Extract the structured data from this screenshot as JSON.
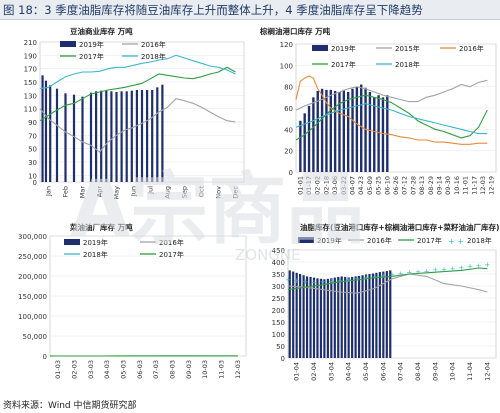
{
  "figure": {
    "title": "图 18：3 季度油脂库存将随豆油库存上升而整体上升，4 季度油脂库存呈下降趋势",
    "source": "资料来源：Wind 中信期货研究部"
  },
  "watermark": {
    "text": "A宗商品",
    "subtext": "ZONGNE"
  },
  "colors": {
    "bar_navy": "#1f2f6d",
    "grey": "#a3a3a3",
    "orange": "#e38b3c",
    "green": "#2f9e3f",
    "cyan": "#3db7c9",
    "navy_line": "#1f2f6d"
  },
  "chart_data": [
    {
      "id": "soy_oil",
      "type": "line",
      "title": "豆油商业库存 万吨",
      "ylim": [
        0,
        210
      ],
      "yticks": [
        0,
        10,
        30,
        50,
        70,
        90,
        110,
        130,
        150,
        170,
        190,
        210
      ],
      "x_tick_labels": [
        "Jan",
        "Feb",
        "Mar",
        "Apr",
        "May",
        "Jun",
        "Jul",
        "Aug",
        "Sep",
        "Oct",
        "Nov",
        "Dec"
      ],
      "legend": [
        {
          "name": "2019年",
          "kind": "bar",
          "color": "#1f2f6d"
        },
        {
          "name": "2016年",
          "kind": "line",
          "color": "#a3a3a3"
        },
        {
          "name": "2017年",
          "kind": "line",
          "color": "#2f9e3f"
        },
        {
          "name": "2018年",
          "kind": "line",
          "color": "#3db7c9"
        }
      ],
      "series": [
        {
          "name": "2019年",
          "kind": "bar",
          "color": "#1f2f6d",
          "x": [
            0.15,
            0.35,
            0.6,
            1.0,
            1.5,
            2.0,
            2.5,
            3.0,
            3.3,
            3.6,
            3.9,
            4.2,
            4.5,
            4.8,
            5.1,
            5.4,
            5.7,
            6.0,
            6.3,
            6.6,
            6.9,
            7.2
          ],
          "y": [
            160,
            152,
            145,
            140,
            133,
            131,
            128,
            134,
            136,
            137,
            137,
            136,
            135,
            136,
            136,
            137,
            138,
            138,
            138,
            138,
            142,
            146
          ]
        },
        {
          "name": "2016年",
          "kind": "line",
          "color": "#a3a3a3",
          "x": [
            0,
            0.5,
            1.0,
            1.5,
            2.0,
            2.5,
            3.0,
            3.5,
            4.0,
            4.5,
            5.0,
            5.5,
            6.0,
            6.5,
            7.0,
            7.5,
            8.0,
            8.5,
            9.0,
            9.5,
            10.0,
            10.5,
            11.0,
            11.5
          ],
          "y": [
            110,
            95,
            85,
            75,
            68,
            60,
            55,
            45,
            60,
            70,
            78,
            82,
            88,
            95,
            105,
            112,
            125,
            122,
            118,
            112,
            105,
            98,
            92,
            90
          ]
        },
        {
          "name": "2017年",
          "kind": "line",
          "color": "#2f9e3f",
          "x": [
            0,
            0.5,
            1.0,
            1.5,
            2.0,
            2.5,
            3.0,
            3.5,
            4.0,
            4.5,
            5.0,
            5.5,
            6.0,
            6.5,
            7.0,
            7.5,
            8.0,
            8.5,
            9.0,
            9.5,
            10.0,
            10.5,
            11.0,
            11.5
          ],
          "y": [
            92,
            100,
            108,
            115,
            118,
            125,
            132,
            135,
            138,
            140,
            142,
            145,
            148,
            155,
            162,
            160,
            158,
            156,
            155,
            158,
            162,
            165,
            172,
            165
          ]
        },
        {
          "name": "2018年",
          "kind": "line",
          "color": "#3db7c9",
          "x": [
            0,
            0.5,
            1.0,
            1.5,
            2.0,
            2.5,
            3.0,
            3.5,
            4.0,
            4.5,
            5.0,
            5.5,
            6.0,
            6.5,
            7.0,
            7.5,
            8.0,
            8.5,
            9.0,
            9.5,
            10.0,
            10.5,
            11.0,
            11.5
          ],
          "y": [
            140,
            142,
            150,
            158,
            162,
            165,
            165,
            166,
            170,
            172,
            172,
            175,
            178,
            180,
            183,
            185,
            190,
            186,
            182,
            178,
            174,
            172,
            168,
            162
          ]
        }
      ]
    },
    {
      "id": "palm_oil",
      "type": "line",
      "title": "棕榈油港口库存 万吨",
      "ylim": [
        0,
        120
      ],
      "yticks": [
        0,
        20,
        40,
        60,
        80,
        100,
        120
      ],
      "x_tick_labels": [
        "01-01",
        "01-17",
        "02-02",
        "02-18",
        "03-06",
        "03-22",
        "04-07",
        "04-23",
        "05-09",
        "05-25",
        "06-10",
        "06-26",
        "07-12",
        "07-28",
        "08-13",
        "08-29",
        "09-14",
        "09-30",
        "10-16",
        "11-01",
        "11-17",
        "12-03",
        "12-19"
      ],
      "legend": [
        {
          "name": "2019年",
          "kind": "bar",
          "color": "#1f2f6d"
        },
        {
          "name": "2015年",
          "kind": "line",
          "color": "#a3a3a3"
        },
        {
          "name": "2016年",
          "kind": "line",
          "color": "#e38b3c"
        },
        {
          "name": "2017年",
          "kind": "line",
          "color": "#2f9e3f"
        },
        {
          "name": "2018年",
          "kind": "line",
          "color": "#3db7c9"
        }
      ],
      "series": [
        {
          "name": "2019年",
          "kind": "bar",
          "color": "#1f2f6d",
          "x": [
            0.5,
            1,
            1.5,
            2,
            2.5,
            3,
            3.5,
            4,
            4.5,
            5,
            5.5,
            6,
            6.5,
            7,
            7.5,
            8,
            8.5,
            9,
            9.5,
            10,
            10.5
          ],
          "y": [
            48,
            55,
            62,
            70,
            76,
            78,
            77,
            77,
            76,
            75,
            77,
            75,
            78,
            80,
            82,
            79,
            75,
            70,
            72,
            70,
            72
          ]
        },
        {
          "name": "2015年",
          "kind": "line",
          "color": "#a3a3a3",
          "x": [
            0,
            1,
            2,
            3,
            4,
            5,
            6,
            7,
            8,
            9,
            10,
            11,
            12,
            13,
            14,
            15,
            16,
            17,
            18,
            19,
            20,
            21,
            22
          ],
          "y": [
            58,
            62,
            65,
            68,
            72,
            75,
            78,
            80,
            78,
            75,
            72,
            70,
            68,
            66,
            66,
            70,
            72,
            75,
            78,
            82,
            80,
            84,
            86
          ]
        },
        {
          "name": "2016年",
          "kind": "line",
          "color": "#e38b3c",
          "x": [
            0,
            0.5,
            1,
            1.5,
            2,
            2.5,
            3,
            3.5,
            4,
            5,
            6,
            7,
            8,
            9,
            10,
            11,
            12,
            13,
            14,
            15,
            16,
            17,
            18,
            19,
            20,
            21,
            22
          ],
          "y": [
            68,
            85,
            88,
            90,
            88,
            78,
            72,
            65,
            60,
            55,
            52,
            45,
            40,
            38,
            36,
            35,
            33,
            32,
            30,
            30,
            28,
            28,
            27,
            26,
            26,
            27,
            27
          ]
        },
        {
          "name": "2017年",
          "kind": "line",
          "color": "#2f9e3f",
          "x": [
            0,
            1,
            2,
            3,
            4,
            5,
            6,
            7,
            8,
            9,
            10,
            11,
            12,
            13,
            14,
            15,
            16,
            17,
            18,
            19,
            20,
            21,
            22
          ],
          "y": [
            30,
            35,
            42,
            50,
            58,
            64,
            68,
            70,
            72,
            70,
            68,
            65,
            60,
            55,
            48,
            44,
            40,
            38,
            35,
            32,
            34,
            42,
            58
          ]
        },
        {
          "name": "2018年",
          "kind": "line",
          "color": "#3db7c9",
          "x": [
            0,
            1,
            2,
            3,
            4,
            5,
            6,
            7,
            8,
            9,
            10,
            11,
            12,
            13,
            14,
            15,
            16,
            17,
            18,
            19,
            20,
            21,
            22
          ],
          "y": [
            42,
            45,
            48,
            52,
            55,
            58,
            60,
            62,
            64,
            62,
            60,
            58,
            55,
            52,
            50,
            48,
            46,
            44,
            42,
            40,
            38,
            36,
            36
          ]
        }
      ]
    },
    {
      "id": "rapeseed_oil",
      "type": "line",
      "title": "菜油油厂库存 万吨",
      "ylim": [
        0,
        300000
      ],
      "yticks": [
        0,
        50000,
        100000,
        150000,
        200000,
        250000,
        300000
      ],
      "ytick_labels": [
        "0",
        "50,000",
        "100,000",
        "150,000",
        "200,000",
        "250,000",
        "300,000"
      ],
      "x_tick_labels": [
        "01-03",
        "02-03",
        "03-03",
        "04-03",
        "05-03",
        "06-03",
        "07-03",
        "08-03",
        "09-03",
        "10-03",
        "11-03",
        "12-03"
      ],
      "legend": [
        {
          "name": "2019年",
          "kind": "bar",
          "color": "#1f2f6d"
        },
        {
          "name": "2016年",
          "kind": "line",
          "color": "#a3a3a3"
        },
        {
          "name": "2018年",
          "kind": "line",
          "color": "#3db7c9"
        },
        {
          "name": "2017年",
          "kind": "line",
          "color": "#2f9e3f"
        }
      ],
      "series": [
        {
          "name": "2019年",
          "kind": "bar",
          "color": "#1f2f6d",
          "x": [
            0.1,
            0.3,
            0.5,
            0.7,
            0.9,
            1.1,
            1.3,
            1.5,
            1.7,
            1.9,
            2.1,
            2.3,
            2.5,
            2.7,
            2.9,
            3.1,
            3.3,
            3.5,
            3.7,
            3.9,
            4.1,
            4.3,
            4.5,
            4.7,
            4.9,
            5.1,
            5.3,
            5.5,
            5.7
          ],
          "y": [
            195,
            180,
            175,
            168,
            160,
            155,
            150,
            145,
            140,
            142,
            138,
            140,
            135,
            138,
            140,
            136,
            138,
            135,
            138,
            140,
            136,
            138,
            134,
            136,
            138,
            140,
            142,
            145,
            155
          ]
        },
        {
          "name": "2016年",
          "kind": "line",
          "color": "#a3a3a3",
          "x": [
            0,
            1,
            2,
            3,
            4,
            5,
            6,
            6.5,
            7,
            7.5,
            8,
            8.5,
            9,
            9.5,
            10,
            10.5,
            11,
            11.5
          ],
          "y": [
            90,
            88,
            85,
            80,
            75,
            70,
            80,
            110,
            130,
            160,
            145,
            138,
            120,
            100,
            95,
            85,
            88,
            90
          ]
        },
        {
          "name": "2018年",
          "kind": "line",
          "color": "#3db7c9",
          "x": [
            0,
            1,
            2,
            3,
            4,
            5,
            6,
            7,
            8,
            9,
            10,
            11,
            11.5
          ],
          "y": [
            125,
            120,
            100,
            95,
            120,
            125,
            135,
            145,
            190,
            215,
            205,
            200,
            190
          ]
        },
        {
          "name": "2017年",
          "kind": "line",
          "color": "#2f9e3f",
          "x": [
            0,
            1,
            2,
            3,
            4,
            5,
            6,
            7,
            8,
            9,
            10,
            11,
            11.5
          ],
          "y": [
            110,
            105,
            100,
            120,
            130,
            150,
            165,
            200,
            210,
            215,
            205,
            175,
            140
          ]
        }
      ],
      "value_scale_note": ""
    },
    {
      "id": "total_oil",
      "type": "line",
      "title": "油脂库存(豆油港口库存+棕榈油港口库存+菜籽油油厂库存) 万吨",
      "ylim": [
        0,
        450
      ],
      "yticks": [
        0,
        50,
        100,
        150,
        200,
        250,
        300,
        350,
        400,
        450
      ],
      "x_tick_labels": [
        "01-04",
        "02-04",
        "03-04",
        "04-04",
        "05-04",
        "06-04",
        "07-04",
        "08-04",
        "09-04",
        "10-04",
        "11-04",
        "12-04"
      ],
      "legend": [
        {
          "name": "2019年",
          "kind": "bar",
          "color": "#1f2f6d"
        },
        {
          "name": "2016年",
          "kind": "line",
          "color": "#a3a3a3"
        },
        {
          "name": "2017年",
          "kind": "line",
          "color": "#2f9e3f"
        },
        {
          "name": "2018年",
          "kind": "dots",
          "color": "#3db7c9"
        }
      ],
      "series": [
        {
          "name": "2019年",
          "kind": "bar",
          "color": "#1f2f6d",
          "x": [
            0.1,
            0.3,
            0.5,
            0.7,
            0.9,
            1.1,
            1.3,
            1.5,
            1.7,
            1.9,
            2.1,
            2.3,
            2.5,
            2.7,
            2.9,
            3.1,
            3.3,
            3.5,
            3.7,
            3.9,
            4.1,
            4.3,
            4.5,
            4.7,
            4.9,
            5.1,
            5.3,
            5.5,
            5.7,
            5.9
          ],
          "y": [
            365,
            360,
            355,
            350,
            345,
            340,
            338,
            335,
            332,
            330,
            328,
            330,
            332,
            335,
            338,
            340,
            338,
            336,
            338,
            340,
            342,
            345,
            348,
            350,
            352,
            355,
            358,
            360,
            362,
            365
          ]
        },
        {
          "name": "2016年",
          "kind": "line",
          "color": "#a3a3a3",
          "x": [
            0,
            1,
            2,
            3,
            4,
            5,
            6,
            7,
            8,
            9,
            10,
            11,
            11.5
          ],
          "y": [
            300,
            295,
            285,
            275,
            270,
            290,
            330,
            350,
            340,
            310,
            300,
            285,
            275
          ]
        },
        {
          "name": "2017年",
          "kind": "line",
          "color": "#2f9e3f",
          "x": [
            0,
            1,
            2,
            3,
            4,
            5,
            6,
            7,
            8,
            9,
            10,
            11,
            11.5
          ],
          "y": [
            285,
            295,
            305,
            318,
            325,
            335,
            340,
            350,
            355,
            360,
            365,
            375,
            372
          ]
        },
        {
          "name": "2018年",
          "kind": "dots",
          "color": "#3db7c9",
          "x": [
            0,
            0.5,
            1,
            1.5,
            2,
            2.5,
            3,
            3.5,
            4,
            4.5,
            5,
            5.5,
            6,
            6.5,
            7,
            7.5,
            8,
            8.5,
            9,
            9.5,
            10,
            10.5,
            11,
            11.5
          ],
          "y": [
            330,
            325,
            320,
            318,
            320,
            322,
            325,
            330,
            335,
            338,
            342,
            345,
            350,
            355,
            360,
            362,
            365,
            370,
            372,
            375,
            380,
            385,
            388,
            392
          ]
        }
      ]
    }
  ]
}
